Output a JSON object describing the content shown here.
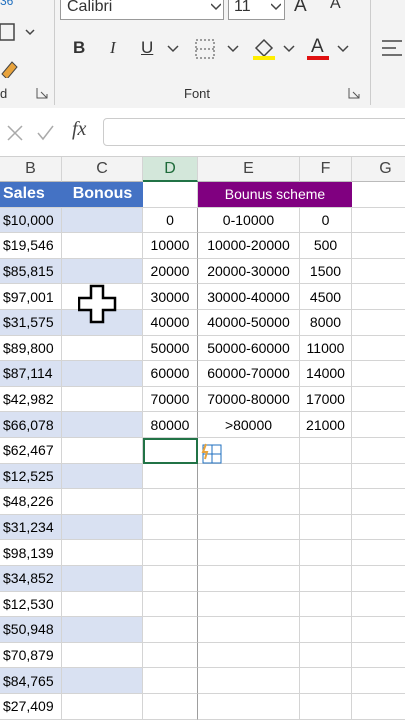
{
  "ribbon": {
    "clip_top": "36",
    "font_name": "Calibri",
    "font_size": "11",
    "grow": "A",
    "shrink": "A",
    "bold": "B",
    "italic": "I",
    "underline": "U",
    "font_color": "A",
    "clipboard_label": "d",
    "group_label": "Font"
  },
  "formula_bar": {
    "fx": "fx"
  },
  "columns": [
    "B",
    "C",
    "D",
    "E",
    "F",
    "G"
  ],
  "headers": {
    "sales": "Sales",
    "bonus": "Bonous",
    "scheme": "Bounus scheme"
  },
  "sales": [
    "$10,000",
    "$19,546",
    "$85,815",
    "$97,001",
    "$31,575",
    "$89,800",
    "$87,114",
    "$42,982",
    "$66,078",
    "$62,467",
    "$12,525",
    "$48,226",
    "$31,234",
    "$98,139",
    "$34,852",
    "$12,530",
    "$50,948",
    "$70,879",
    "$84,765",
    "$27,409"
  ],
  "scheme": [
    [
      0,
      "0-10000",
      0
    ],
    [
      10000,
      "10000-20000",
      500
    ],
    [
      20000,
      "20000-30000",
      1500
    ],
    [
      30000,
      "30000-40000",
      4500
    ],
    [
      40000,
      "40000-50000",
      8000
    ],
    [
      50000,
      "50000-60000",
      11000
    ],
    [
      60000,
      "60000-70000",
      14000
    ],
    [
      70000,
      "70000-80000",
      17000
    ],
    [
      80000,
      ">80000",
      21000
    ]
  ]
}
